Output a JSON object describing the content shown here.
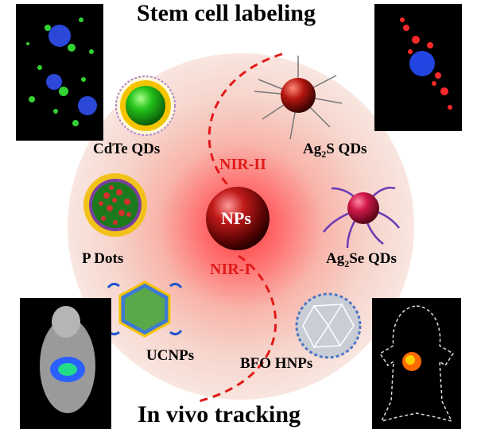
{
  "titles": {
    "top": "Stem cell labeling",
    "bottom": "In vivo tracking"
  },
  "center": {
    "label": "NPs",
    "nir_upper": "NIR-II",
    "nir_lower": "NIR-I"
  },
  "nanoparticles": {
    "cdte": "CdTe QDs",
    "ag2s": {
      "prefix": "Ag",
      "sub": "2",
      "suffix": "S QDs"
    },
    "pdots": "P Dots",
    "ag2se": {
      "prefix": "Ag",
      "sub": "2",
      "suffix": "Se QDs"
    },
    "ucnps": "UCNPs",
    "bfo": "BFO HNPs"
  },
  "colors": {
    "nir_red": "#e11a1a",
    "disc_inner": "#ff3d3d",
    "disc_outer": "#f8ddd6",
    "photo_bg": "#000000"
  }
}
